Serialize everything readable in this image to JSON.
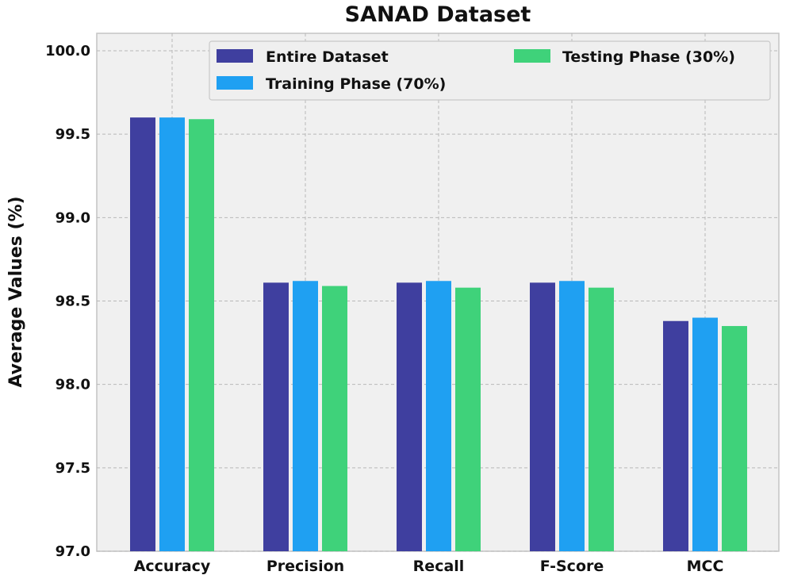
{
  "chart_data": {
    "type": "bar",
    "title": "SANAD Dataset",
    "xlabel": "",
    "ylabel": "Average Values (%)",
    "ylim": [
      97.0,
      100.0
    ],
    "yticks": [
      "97.0",
      "97.5",
      "98.0",
      "98.5",
      "99.0",
      "99.5",
      "100.0"
    ],
    "ytick_values": [
      97.0,
      97.5,
      98.0,
      98.5,
      99.0,
      99.5,
      100.0
    ],
    "grid": true,
    "legend_position": "top-right",
    "categories": [
      "Accuracy",
      "Precision",
      "Recall",
      "F-Score",
      "MCC"
    ],
    "series": [
      {
        "name": "Entire Dataset",
        "color": "#3f3f9f",
        "values": [
          99.6,
          98.61,
          98.61,
          98.61,
          98.38
        ]
      },
      {
        "name": "Training Phase (70%)",
        "color": "#1fa0f2",
        "values": [
          99.6,
          98.62,
          98.62,
          98.62,
          98.4
        ]
      },
      {
        "name": "Testing Phase (30%)",
        "color": "#3fd27a",
        "values": [
          99.59,
          98.59,
          98.58,
          98.58,
          98.35
        ]
      }
    ]
  }
}
